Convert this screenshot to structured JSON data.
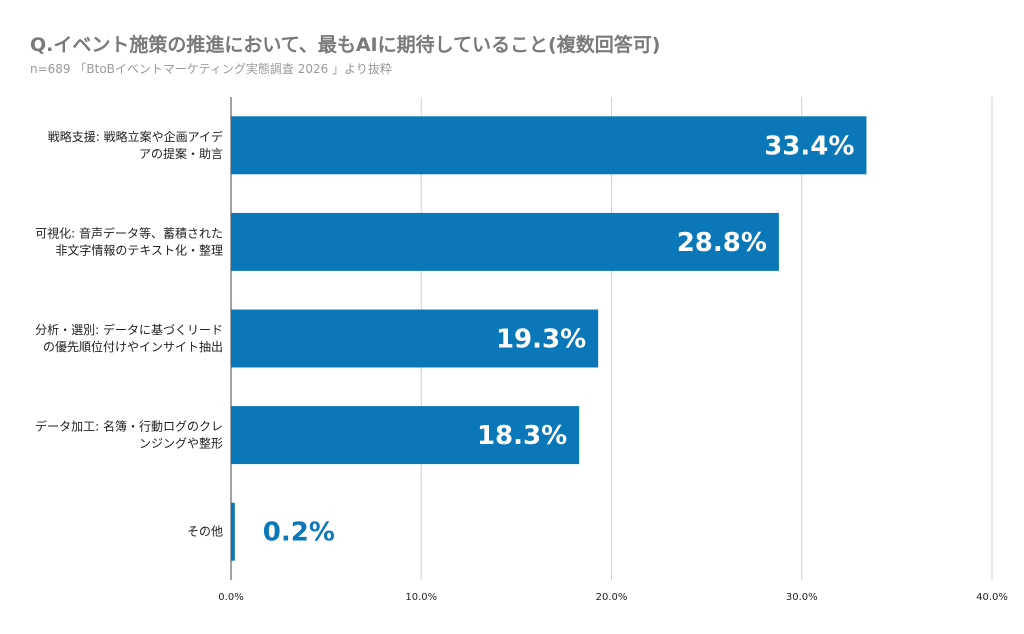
{
  "title": "Q.イベント施策の推進において、最もAIに期待していること(複数回答可)",
  "subtitle": "n=689 「BtoBイベントマーケティング実態調査 2026 」より抜粋",
  "colors": {
    "bar": "#0a78b8",
    "label_inside": "#ffffff",
    "label_outside": "#0a78b8",
    "grid": "#d0d0d0",
    "axis": "#444444"
  },
  "chart_data": {
    "type": "bar",
    "orientation": "horizontal",
    "categories": [
      [
        "戦略支援: 戦略立案や企画アイデ",
        "アの提案・助言"
      ],
      [
        "可視化: 音声データ等、蓄積された",
        "非文字情報のテキスト化・整理"
      ],
      [
        "分析・選別: データに基づくリード",
        "の優先順位付けやインサイト抽出"
      ],
      [
        "データ加工: 名簿・行動ログのクレ",
        "ンジングや整形"
      ],
      [
        "その他"
      ]
    ],
    "values": [
      33.4,
      28.8,
      19.3,
      18.3,
      0.2
    ],
    "value_labels": [
      "33.4%",
      "28.8%",
      "19.3%",
      "18.3%",
      "0.2%"
    ],
    "x_ticks": [
      "0.0%",
      "10.0%",
      "20.0%",
      "30.0%",
      "40.0%"
    ],
    "xlim": [
      0,
      40
    ],
    "grid": true
  }
}
